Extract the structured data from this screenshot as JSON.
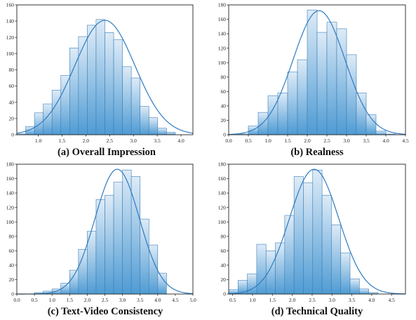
{
  "colors": {
    "bar_top": "#deebf7",
    "bar_bottom": "#4f9bd3",
    "bar_edge": "#3b7fb8",
    "curve": "#2f7bbf",
    "axis": "#222222"
  },
  "chart_data": [
    {
      "type": "bar",
      "caption": "(a) Overall Impression",
      "xlim": [
        0.55,
        4.25
      ],
      "ylim": [
        0,
        160
      ],
      "xticks": [
        "1.0",
        "1.5",
        "2.0",
        "2.5",
        "3.0",
        "3.5",
        "4.0"
      ],
      "xtick_values": [
        1.0,
        1.5,
        2.0,
        2.5,
        3.0,
        3.5,
        4.0
      ],
      "yticks": [
        "0",
        "20",
        "40",
        "60",
        "80",
        "100",
        "120",
        "140",
        "160"
      ],
      "ytick_values": [
        0,
        20,
        40,
        60,
        80,
        100,
        120,
        140,
        160
      ],
      "bin_start": 0.55,
      "bin_width": 0.185,
      "values": [
        1,
        10,
        27,
        38,
        55,
        73,
        107,
        121,
        135,
        142,
        126,
        117,
        84,
        70,
        35,
        21,
        8,
        3
      ],
      "curve": {
        "mean": 2.4,
        "sd": 0.63,
        "peak": 141
      },
      "grid": false
    },
    {
      "type": "bar",
      "caption": "(b) Realness",
      "xlim": [
        0.0,
        4.5
      ],
      "ylim": [
        0,
        180
      ],
      "xticks": [
        "0.0",
        "0.5",
        "1.0",
        "1.5",
        "2.0",
        "2.5",
        "3.0",
        "3.5",
        "4.0",
        "4.5"
      ],
      "xtick_values": [
        0.0,
        0.5,
        1.0,
        1.5,
        2.0,
        2.5,
        3.0,
        3.5,
        4.0,
        4.5
      ],
      "yticks": [
        "0",
        "20",
        "40",
        "60",
        "80",
        "100",
        "120",
        "140",
        "160",
        "180"
      ],
      "ytick_values": [
        0,
        20,
        40,
        60,
        80,
        100,
        120,
        140,
        160,
        180
      ],
      "bin_start": 0.25,
      "bin_width": 0.25,
      "values": [
        1,
        12,
        31,
        54,
        58,
        87,
        104,
        173,
        142,
        156,
        147,
        111,
        58,
        28,
        5,
        1
      ],
      "curve": {
        "mean": 2.3,
        "sd": 0.66,
        "peak": 172
      },
      "grid": false
    },
    {
      "type": "bar",
      "caption": "(c) Text-Video Consistency",
      "xlim": [
        0.0,
        5.0
      ],
      "ylim": [
        0,
        180
      ],
      "xticks": [
        "0.0",
        "0.5",
        "1.0",
        "1.5",
        "2.0",
        "2.5",
        "3.0",
        "3.5",
        "4.0",
        "4.5",
        "5.0"
      ],
      "xtick_values": [
        0.0,
        0.5,
        1.0,
        1.5,
        2.0,
        2.5,
        3.0,
        3.5,
        4.0,
        4.5,
        5.0
      ],
      "yticks": [
        "0",
        "20",
        "40",
        "60",
        "80",
        "100",
        "120",
        "140",
        "160",
        "180"
      ],
      "ytick_values": [
        0,
        20,
        40,
        60,
        80,
        100,
        120,
        140,
        160,
        180
      ],
      "bin_start": 0.5,
      "bin_width": 0.25,
      "values": [
        2,
        4,
        7,
        15,
        33,
        62,
        87,
        131,
        137,
        155,
        172,
        163,
        104,
        68,
        29
      ],
      "curve": {
        "mean": 2.85,
        "sd": 0.63,
        "peak": 173
      },
      "grid": false
    },
    {
      "type": "bar",
      "caption": "(d) Technical Quality",
      "xlim": [
        0.4,
        4.85
      ],
      "ylim": [
        0,
        180
      ],
      "xticks": [
        "0.5",
        "1.0",
        "1.5",
        "2.0",
        "2.5",
        "3.0",
        "3.5",
        "4.0",
        "4.5"
      ],
      "xtick_values": [
        0.5,
        1.0,
        1.5,
        2.0,
        2.5,
        3.0,
        3.5,
        4.0,
        4.5
      ],
      "yticks": [
        "0",
        "20",
        "40",
        "60",
        "80",
        "100",
        "120",
        "140",
        "160",
        "180"
      ],
      "ytick_values": [
        0,
        20,
        40,
        60,
        80,
        100,
        120,
        140,
        160,
        180
      ],
      "bin_start": 0.4,
      "bin_width": 0.235,
      "values": [
        6,
        19,
        28,
        69,
        60,
        71,
        109,
        163,
        154,
        172,
        137,
        96,
        57,
        21,
        7,
        2
      ],
      "curve": {
        "mean": 2.55,
        "sd": 0.62,
        "peak": 173
      },
      "grid": false
    }
  ]
}
